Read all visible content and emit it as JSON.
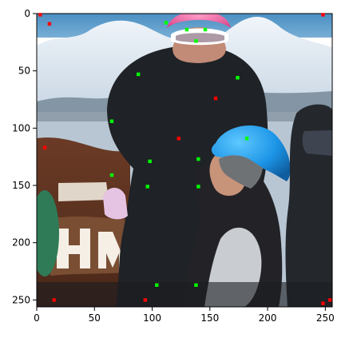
{
  "axes": {
    "x": {
      "ticks": [
        0,
        50,
        100,
        150,
        200,
        250
      ],
      "labels": [
        "0",
        "50",
        "100",
        "150",
        "200",
        "250"
      ],
      "range": [
        0,
        256
      ]
    },
    "y": {
      "ticks": [
        0,
        50,
        100,
        150,
        200,
        250
      ],
      "labels": [
        "0",
        "50",
        "100",
        "150",
        "200",
        "250"
      ],
      "range": [
        0,
        256
      ],
      "inverted": true
    }
  },
  "image": {
    "description_hidden": "",
    "width_units": 256,
    "height_units": 256
  },
  "points": {
    "green": {
      "color": "#00ff00",
      "items": [
        [
          112,
          8
        ],
        [
          130,
          14
        ],
        [
          146,
          14
        ],
        [
          138,
          24
        ],
        [
          88,
          53
        ],
        [
          174,
          56
        ],
        [
          65,
          94
        ],
        [
          182,
          109
        ],
        [
          98,
          129
        ],
        [
          140,
          127
        ],
        [
          65,
          141
        ],
        [
          96,
          151
        ],
        [
          140,
          151
        ],
        [
          104,
          237
        ],
        [
          138,
          237
        ]
      ]
    },
    "red": {
      "color": "#ff0000",
      "items": [
        [
          3,
          1
        ],
        [
          11,
          9
        ],
        [
          248,
          1
        ],
        [
          155,
          74
        ],
        [
          123,
          109
        ],
        [
          7,
          117
        ],
        [
          15,
          250
        ],
        [
          94,
          250
        ],
        [
          248,
          253
        ],
        [
          254,
          250
        ]
      ]
    }
  }
}
